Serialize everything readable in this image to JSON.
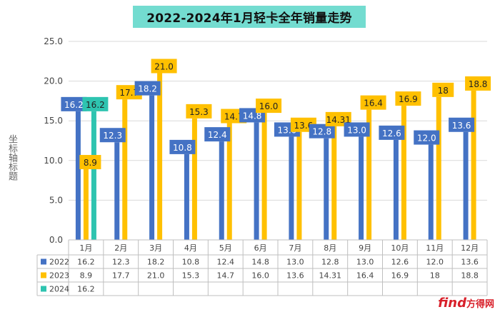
{
  "watermark": {
    "brand": "find",
    "suffix": "方得网"
  },
  "chart_data": {
    "type": "bar",
    "title": "2022-2024年1月轻卡全年销量走势",
    "ylabel": "坐标轴标题",
    "xlabel": "",
    "ylim": [
      0,
      25
    ],
    "yticks": [
      "0.0",
      "5.0",
      "10.0",
      "15.0",
      "20.0",
      "25.0"
    ],
    "grid": true,
    "categories": [
      "1月",
      "2月",
      "3月",
      "4月",
      "5月",
      "6月",
      "7月",
      "8月",
      "9月",
      "10月",
      "11月",
      "12月"
    ],
    "series": [
      {
        "name": "2022",
        "color": "#4472c4",
        "values": [
          16.2,
          12.3,
          18.2,
          10.8,
          12.4,
          14.8,
          13.0,
          12.8,
          13.0,
          12.6,
          12.0,
          13.6
        ],
        "labels": [
          "16.2",
          "12.3",
          "18.2",
          "10.8",
          "12.4",
          "14.8",
          "13.0",
          "12.8",
          "13.0",
          "12.6",
          "12.0",
          "13.6"
        ]
      },
      {
        "name": "2023",
        "color": "#ffc000",
        "values": [
          8.9,
          17.7,
          21.0,
          15.3,
          14.7,
          16.0,
          13.6,
          14.31,
          16.4,
          16.9,
          18,
          18.8
        ],
        "labels": [
          "8.9",
          "17.7",
          "21.0",
          "15.3",
          "14.7",
          "16.0",
          "13.6",
          "14.31",
          "16.4",
          "16.9",
          "18",
          "18.8"
        ]
      },
      {
        "name": "2024",
        "color": "#2ec4b0",
        "values": [
          16.2,
          null,
          null,
          null,
          null,
          null,
          null,
          null,
          null,
          null,
          null,
          null
        ],
        "labels": [
          "16.2",
          "",
          "",
          "",
          "",
          "",
          "",
          "",
          "",
          "",
          "",
          ""
        ]
      }
    ]
  }
}
